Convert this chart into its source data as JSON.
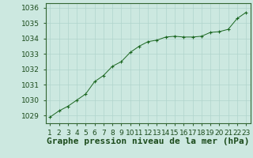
{
  "x": [
    1,
    2,
    3,
    4,
    5,
    6,
    7,
    8,
    9,
    10,
    11,
    12,
    13,
    14,
    15,
    16,
    17,
    18,
    19,
    20,
    21,
    22,
    23
  ],
  "y": [
    1028.9,
    1029.3,
    1029.6,
    1030.0,
    1030.4,
    1031.2,
    1031.6,
    1032.2,
    1032.5,
    1033.1,
    1033.5,
    1033.8,
    1033.9,
    1034.1,
    1034.15,
    1034.1,
    1034.1,
    1034.15,
    1034.4,
    1034.45,
    1034.6,
    1035.3,
    1035.7
  ],
  "line_color": "#1a6620",
  "marker_color": "#1a6620",
  "bg_color": "#cce8e0",
  "grid_color": "#b0d4cc",
  "xlabel": "Graphe pression niveau de la mer (hPa)",
  "ylim_min": 1028.5,
  "ylim_max": 1036.3,
  "yticks": [
    1029,
    1030,
    1031,
    1032,
    1033,
    1034,
    1035,
    1036
  ],
  "xlabel_fontsize": 8,
  "tick_fontsize": 6.5
}
